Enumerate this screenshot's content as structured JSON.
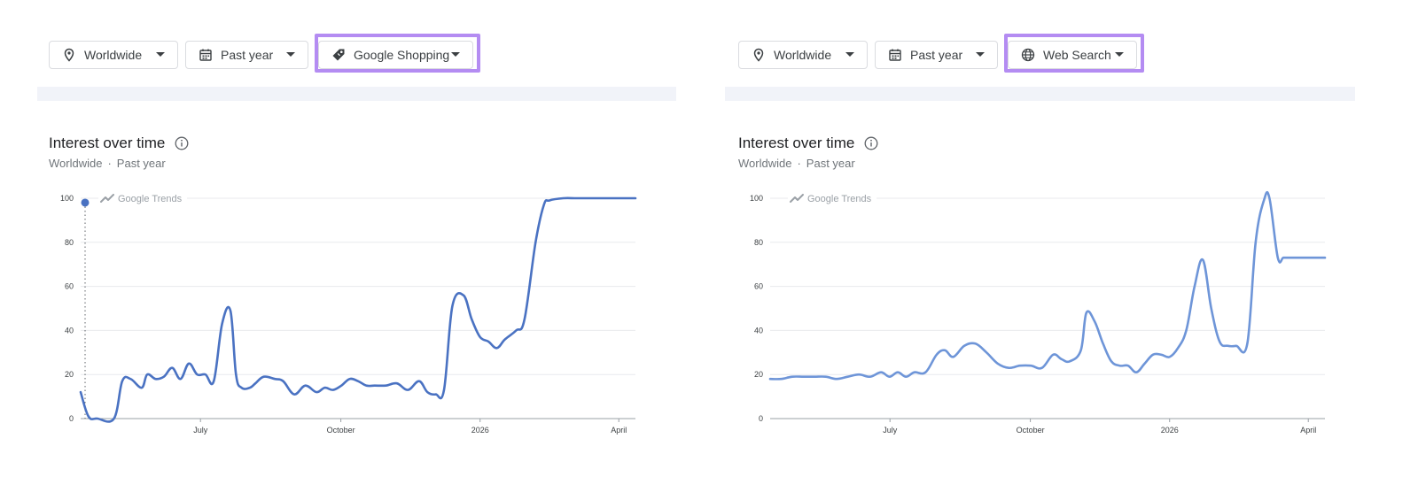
{
  "panels": [
    {
      "filters": {
        "location": "Worldwide",
        "period": "Past year",
        "property": "Google Shopping",
        "property_icon": "tag-icon"
      },
      "title": "Interest over time",
      "subtitle": {
        "location": "Worldwide",
        "separator": "·",
        "period": "Past year"
      },
      "watermark": "Google Trends"
    },
    {
      "filters": {
        "location": "Worldwide",
        "period": "Past year",
        "property": "Web Search",
        "property_icon": "globe-icon"
      },
      "title": "Interest over time",
      "subtitle": {
        "location": "Worldwide",
        "separator": "·",
        "period": "Past year"
      },
      "watermark": "Google Trends"
    }
  ],
  "colors": {
    "highlight": "#b48cf2",
    "line_left": "#4a72c2",
    "line_right": "#6e95d8",
    "grid": "#e8eaed"
  },
  "chart_data": [
    {
      "type": "line",
      "ylim": [
        0,
        100
      ],
      "yticks": [
        0,
        20,
        40,
        60,
        80,
        100
      ],
      "xlim": [
        0,
        1
      ],
      "xticks": [
        {
          "label": "July",
          "x": 0.216
        },
        {
          "label": "October",
          "x": 0.469
        },
        {
          "label": "2026",
          "x": 0.72
        },
        {
          "label": "April",
          "x": 0.97
        }
      ],
      "marker": {
        "x": 0.008,
        "y": 98
      },
      "series": [
        {
          "x": [
            0,
            0.014,
            0.03,
            0.06,
            0.075,
            0.09,
            0.11,
            0.12,
            0.135,
            0.15,
            0.165,
            0.18,
            0.195,
            0.21,
            0.225,
            0.24,
            0.255,
            0.27,
            0.28,
            0.29,
            0.305,
            0.315,
            0.33,
            0.35,
            0.365,
            0.385,
            0.405,
            0.425,
            0.44,
            0.455,
            0.47,
            0.485,
            0.5,
            0.515,
            0.53,
            0.55,
            0.57,
            0.59,
            0.61,
            0.625,
            0.64,
            0.655,
            0.67,
            0.69,
            0.705,
            0.72,
            0.735,
            0.75,
            0.765,
            0.785,
            0.8,
            0.82,
            0.835,
            0.845,
            0.87,
            0.89,
            0.9,
            0.915,
            0.94,
            0.955,
            0.97,
            0.985,
            1.0
          ],
          "y": [
            12,
            1,
            0,
            0,
            17,
            18,
            14,
            20,
            18,
            19,
            23,
            18,
            25,
            20,
            20,
            17,
            43,
            49,
            20,
            14,
            14,
            16,
            19,
            18,
            17,
            11,
            15,
            12,
            14,
            13,
            15,
            18,
            17,
            15,
            15,
            15,
            16,
            13,
            17,
            12,
            11,
            13,
            51,
            56,
            45,
            37,
            35,
            32,
            36,
            40,
            45,
            80,
            97,
            99,
            100,
            100,
            100,
            100,
            100,
            100,
            100,
            100,
            100
          ]
        }
      ]
    },
    {
      "type": "line",
      "ylim": [
        0,
        100
      ],
      "yticks": [
        0,
        20,
        40,
        60,
        80,
        100
      ],
      "xlim": [
        0,
        1
      ],
      "xticks": [
        {
          "label": "July",
          "x": 0.216
        },
        {
          "label": "October",
          "x": 0.469
        },
        {
          "label": "2026",
          "x": 0.72
        },
        {
          "label": "April",
          "x": 0.97
        }
      ],
      "series": [
        {
          "x": [
            0,
            0.02,
            0.04,
            0.06,
            0.08,
            0.1,
            0.12,
            0.14,
            0.16,
            0.18,
            0.2,
            0.215,
            0.23,
            0.245,
            0.26,
            0.28,
            0.3,
            0.315,
            0.33,
            0.35,
            0.37,
            0.39,
            0.41,
            0.43,
            0.45,
            0.47,
            0.49,
            0.51,
            0.525,
            0.54,
            0.56,
            0.57,
            0.585,
            0.6,
            0.615,
            0.63,
            0.645,
            0.66,
            0.675,
            0.69,
            0.705,
            0.72,
            0.735,
            0.75,
            0.765,
            0.78,
            0.795,
            0.81,
            0.825,
            0.84,
            0.86,
            0.875,
            0.89,
            0.9,
            0.915,
            0.925,
            0.935,
            0.945,
            0.96,
            0.975,
            1.0
          ],
          "y": [
            18,
            18,
            19,
            19,
            19,
            19,
            18,
            19,
            20,
            19,
            21,
            19,
            21,
            19,
            21,
            21,
            29,
            31,
            28,
            33,
            34,
            30,
            25,
            23,
            24,
            24,
            23,
            29,
            27,
            26,
            31,
            48,
            44,
            34,
            26,
            24,
            24,
            21,
            25,
            29,
            29,
            28,
            32,
            40,
            60,
            72,
            50,
            35,
            33,
            33,
            34,
            80,
            99,
            100,
            73,
            73,
            73,
            73,
            73,
            73,
            73
          ]
        }
      ]
    }
  ]
}
